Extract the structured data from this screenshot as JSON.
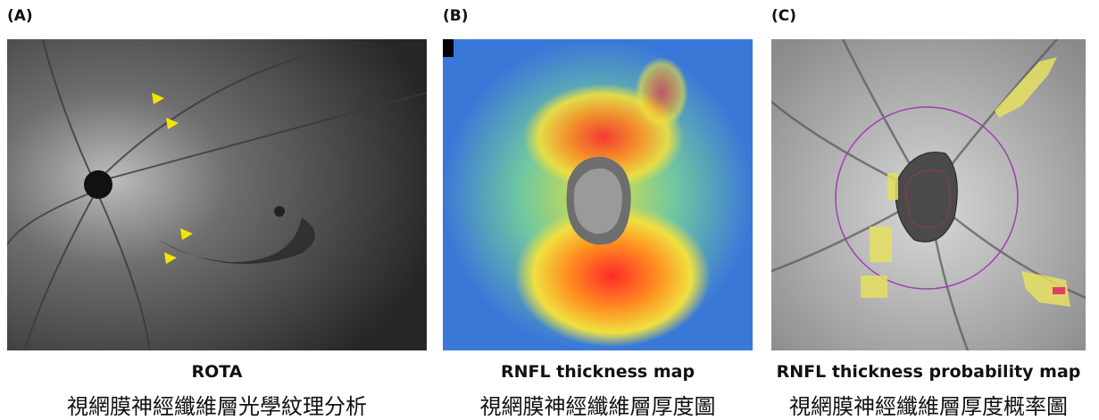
{
  "panels": [
    {
      "label": "(A)",
      "title": "ROTA",
      "subtitle": "視網膜神經纖維層光學紋理分析"
    },
    {
      "label": "(B)",
      "title": "RNFL thickness map",
      "subtitle": "視網膜神經纖維層厚度圖"
    },
    {
      "label": "(C)",
      "title": "RNFL thickness probability map",
      "subtitle": "視網膜神經纖維層厚度概率圖"
    }
  ]
}
